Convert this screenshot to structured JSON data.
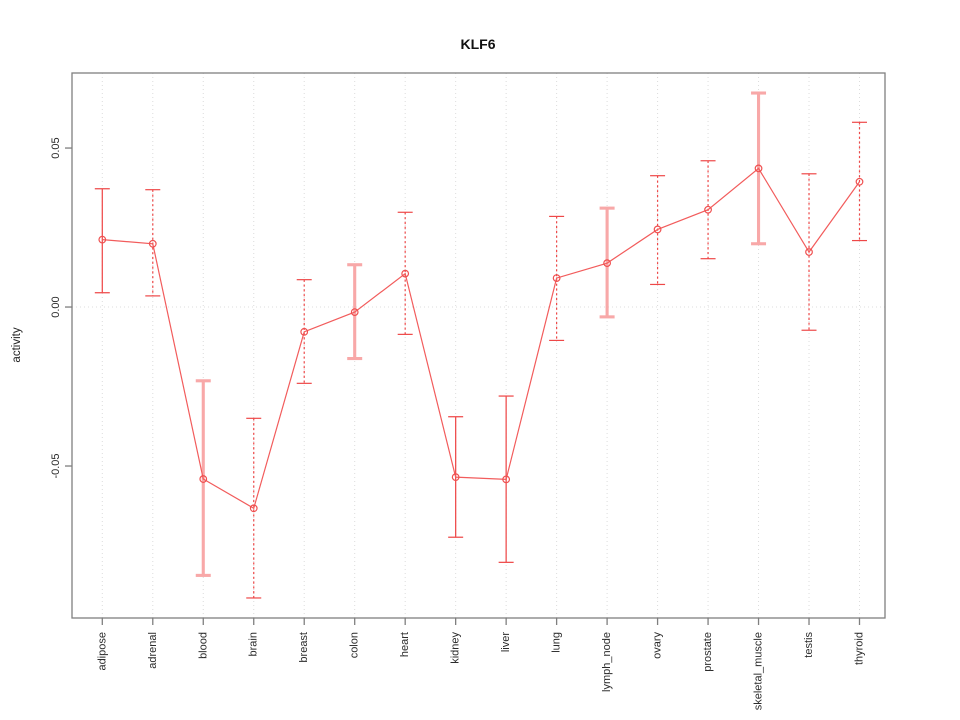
{
  "page": {
    "background": "#ffffff"
  },
  "chart_data": {
    "type": "line",
    "title": "KLF6",
    "xlabel": "",
    "ylabel": "activity",
    "legend": "none",
    "grid": "vertical dotted gridline at each category; horizontal dotted line at y=0",
    "categories": [
      "adipose",
      "adrenal",
      "blood",
      "brain",
      "breast",
      "colon",
      "heart",
      "kidney",
      "liver",
      "lung",
      "lymph_node",
      "ovary",
      "prostate",
      "skeletal_muscle",
      "testis",
      "thyroid"
    ],
    "series": [
      {
        "name": "activity",
        "values": [
          0.0212,
          0.0199,
          -0.0541,
          -0.0633,
          -0.0078,
          -0.0016,
          0.0105,
          -0.0535,
          -0.0542,
          0.0091,
          0.0138,
          0.0244,
          0.0306,
          0.0436,
          0.0173,
          0.0394
        ],
        "ci_high": [
          0.0372,
          0.0369,
          -0.0232,
          -0.035,
          0.0086,
          0.0133,
          0.0298,
          -0.0345,
          -0.028,
          0.0285,
          0.0311,
          0.0413,
          0.046,
          0.0673,
          0.0419,
          0.0581
        ],
        "ci_low": [
          0.0045,
          0.0035,
          -0.0844,
          -0.0915,
          -0.024,
          -0.0162,
          -0.0086,
          -0.0724,
          -0.0803,
          -0.0105,
          -0.0031,
          0.0071,
          0.0152,
          0.0199,
          -0.0073,
          0.0209
        ]
      }
    ],
    "error_bar_styles": [
      "solid",
      "dotted",
      "light",
      "dotted",
      "dotted",
      "light",
      "dotted",
      "solid",
      "solid",
      "dotted",
      "light",
      "dotted",
      "dotted",
      "light",
      "dotted",
      "dotted"
    ],
    "yticks": [
      -0.05,
      0,
      0.05
    ],
    "ytick_labels": [
      "-0.05",
      "0.00",
      "0.05"
    ],
    "ylim": [
      -0.0978,
      0.0736
    ],
    "marker": "open-circle",
    "colors": {
      "line": "#f25c5c",
      "marker": "#ef5050",
      "errorbar_solid": "#ef5050",
      "errorbar_dotted": "#ee4848",
      "errorbar_light": "#f8a8a8",
      "grid": "#dcdcdc",
      "zero_line": "#dcdcdc",
      "axis": "#7f7f7f",
      "text": "#2b2b2b"
    }
  }
}
